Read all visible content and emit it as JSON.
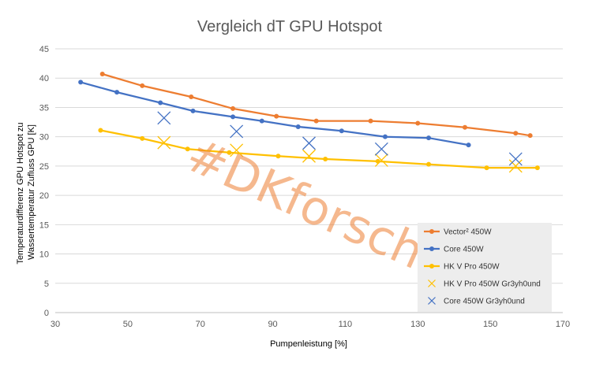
{
  "chart_data": {
    "type": "scatter",
    "title": "Vergleich dT GPU Hotspot",
    "xlabel": "Pumpenleistung [%]",
    "ylabel_lines": [
      "Temperaturdifferenz GPU Hotspot zu",
      "Wassertemperatur Zufluss GPU  [K]"
    ],
    "xlim": [
      30,
      170
    ],
    "ylim": [
      0,
      45
    ],
    "x_ticks": [
      30,
      50,
      70,
      90,
      110,
      130,
      150,
      170
    ],
    "y_ticks": [
      0,
      5,
      10,
      15,
      20,
      25,
      30,
      35,
      40,
      45
    ],
    "grid": "horizontal",
    "legend_position": "bottom-right",
    "watermark": "#DKforscht",
    "series": [
      {
        "name": "Vector² 450W",
        "style": "line-marker",
        "color": "#ED7D31",
        "points": [
          [
            43,
            40.7
          ],
          [
            54,
            38.7
          ],
          [
            67.5,
            36.8
          ],
          [
            79,
            34.8
          ],
          [
            91,
            33.5
          ],
          [
            102,
            32.7
          ],
          [
            117,
            32.7
          ],
          [
            130,
            32.3
          ],
          [
            143,
            31.6
          ],
          [
            157,
            30.6
          ],
          [
            161,
            30.2
          ]
        ]
      },
      {
        "name": "Core 450W",
        "style": "line-marker",
        "color": "#4472C4",
        "points": [
          [
            37,
            39.3
          ],
          [
            47,
            37.6
          ],
          [
            59,
            35.8
          ],
          [
            68,
            34.4
          ],
          [
            79,
            33.4
          ],
          [
            87,
            32.7
          ],
          [
            97,
            31.7
          ],
          [
            109,
            31.0
          ],
          [
            121,
            30.0
          ],
          [
            133,
            29.8
          ],
          [
            144,
            28.6
          ]
        ]
      },
      {
        "name": "HK V Pro 450W",
        "style": "line-marker",
        "color": "#FFC000",
        "points": [
          [
            42.5,
            31.1
          ],
          [
            54,
            29.7
          ],
          [
            66.5,
            27.9
          ],
          [
            78,
            27.3
          ],
          [
            91.5,
            26.7
          ],
          [
            104.5,
            26.2
          ],
          [
            119,
            25.8
          ],
          [
            133,
            25.3
          ],
          [
            149,
            24.7
          ],
          [
            163,
            24.7
          ]
        ]
      },
      {
        "name": "HK V Pro 450W Gr3yh0und",
        "style": "x-marker",
        "color": "#FFC000",
        "points": [
          [
            60,
            29.0
          ],
          [
            80,
            27.7
          ],
          [
            100,
            26.7
          ],
          [
            120,
            26.0
          ],
          [
            157,
            25.0
          ]
        ]
      },
      {
        "name": "Core 450W Gr3yh0und",
        "style": "x-marker",
        "color": "#4472C4",
        "points": [
          [
            60,
            33.2
          ],
          [
            80,
            30.9
          ],
          [
            100,
            28.9
          ],
          [
            120,
            27.9
          ],
          [
            157,
            26.2
          ]
        ]
      }
    ]
  }
}
